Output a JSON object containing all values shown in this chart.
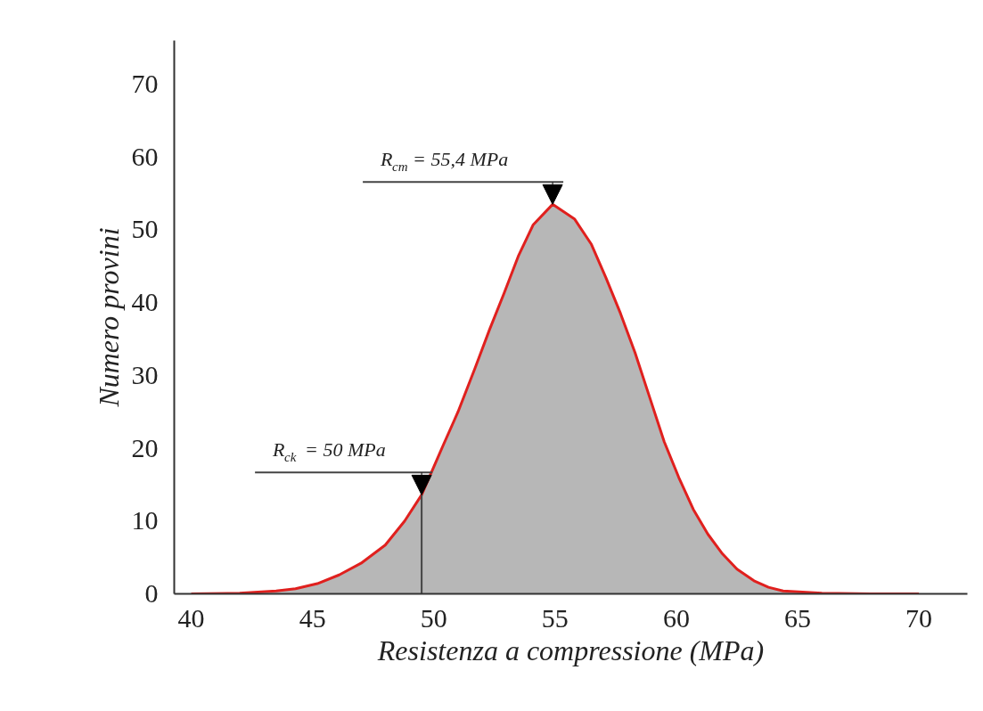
{
  "chart_data": {
    "type": "area",
    "xlabel": "Resistenza a compressione (MPa)",
    "ylabel": "Numero provini",
    "xlim": [
      39.3,
      72
    ],
    "ylim": [
      0,
      76
    ],
    "xticks": [
      40,
      45,
      50,
      55,
      60,
      65,
      70
    ],
    "yticks": [
      0,
      10,
      20,
      30,
      40,
      50,
      60,
      70
    ],
    "grid": false,
    "series": [
      {
        "color": "#b7b7b7",
        "x": [
          40,
          42,
          43.5,
          44.3,
          45.2,
          46.1,
          47,
          48,
          48.8,
          49.5,
          50.4,
          51,
          51.7,
          52.3,
          52.9,
          53.5,
          54.1,
          54.9,
          55.8,
          56.5,
          57.1,
          57.7,
          58.3,
          58.9,
          59.5,
          60.1,
          60.7,
          61.3,
          61.9,
          62.5,
          63.2,
          63.8,
          64.4,
          66,
          68,
          70
        ],
        "values": [
          0,
          0.1,
          0.4,
          0.7,
          1.4,
          2.6,
          4.2,
          6.7,
          10,
          13.6,
          20.5,
          25,
          31,
          36.3,
          41.3,
          46.5,
          50.7,
          53.5,
          51.5,
          48,
          43.4,
          38.5,
          33.1,
          27,
          20.9,
          16,
          11.6,
          8.2,
          5.5,
          3.4,
          1.8,
          0.9,
          0.4,
          0.1,
          0,
          0
        ]
      }
    ],
    "annotations": [
      {
        "text": "R$_{ck}$ = 50 MPa",
        "x": 49.5,
        "y": 13.6
      },
      {
        "text": "R$_{cm}$ = 55,4 MPa",
        "x": 54.9,
        "y": 53.5
      }
    ]
  }
}
